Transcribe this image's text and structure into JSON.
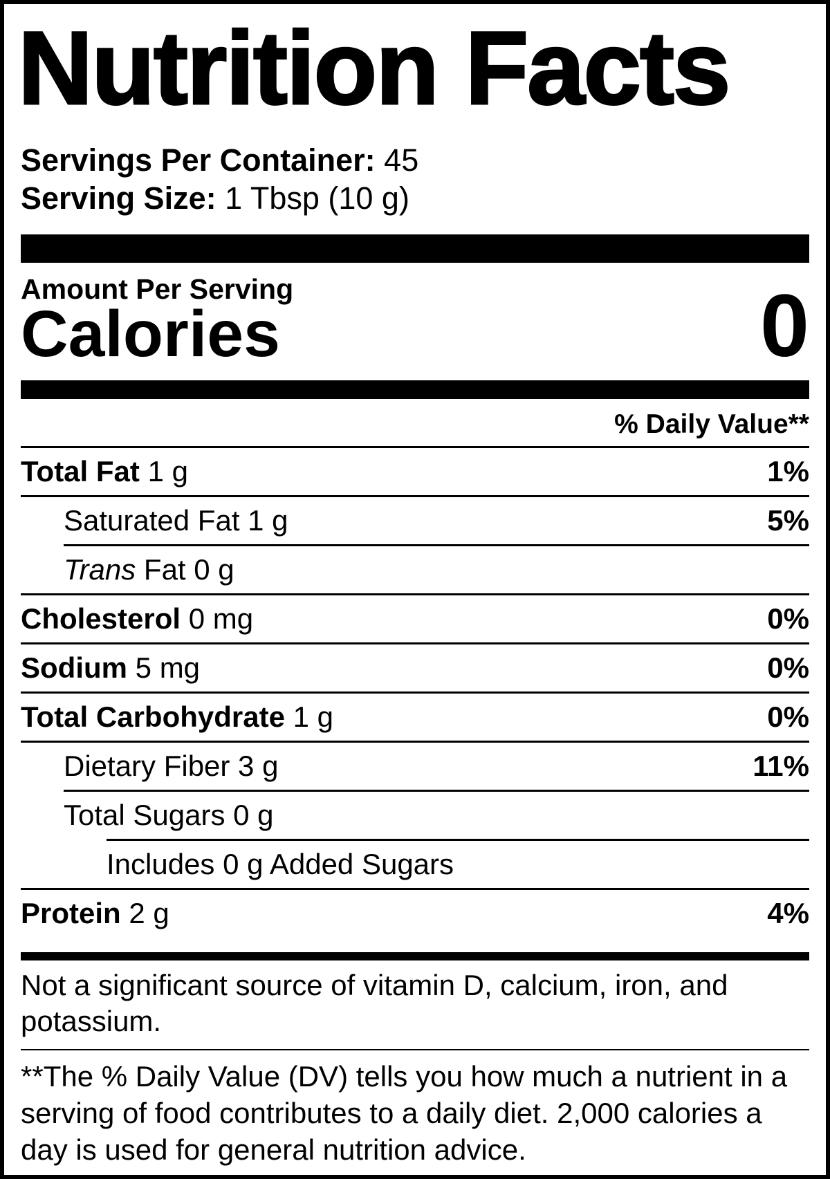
{
  "colors": {
    "ink": "#000000",
    "paper": "#ffffff"
  },
  "title": "Nutrition Facts",
  "serving_info": {
    "servings_per_container_label": "Servings Per Container:",
    "servings_per_container_value": "45",
    "serving_size_label": "Serving Size:",
    "serving_size_value": "1 Tbsp (10 g)"
  },
  "amount_per_serving_label": "Amount Per Serving",
  "calories": {
    "label": "Calories",
    "value": "0"
  },
  "daily_value_header": "% Daily Value**",
  "nutrients": [
    {
      "name_bold": "Total Fat",
      "name_italic": "",
      "name_rest": "1 g",
      "dv": "1%"
    },
    {
      "name_bold": "",
      "name_italic": "",
      "name_rest": "Saturated Fat 1 g",
      "dv": "5%"
    },
    {
      "name_bold": "",
      "name_italic": "Trans",
      "name_rest": "Fat 0 g",
      "dv": ""
    },
    {
      "name_bold": "Cholesterol",
      "name_italic": "",
      "name_rest": "0 mg",
      "dv": "0%"
    },
    {
      "name_bold": "Sodium",
      "name_italic": "",
      "name_rest": "5 mg",
      "dv": "0%"
    },
    {
      "name_bold": "Total Carbohydrate",
      "name_italic": "",
      "name_rest": "1 g",
      "dv": "0%"
    },
    {
      "name_bold": "",
      "name_italic": "",
      "name_rest": "Dietary Fiber 3 g",
      "dv": "11%"
    },
    {
      "name_bold": "",
      "name_italic": "",
      "name_rest": "Total Sugars 0 g",
      "dv": ""
    },
    {
      "name_bold": "",
      "name_italic": "",
      "name_rest": "Includes 0 g Added Sugars",
      "dv": ""
    },
    {
      "name_bold": "Protein",
      "name_italic": "",
      "name_rest": "2 g",
      "dv": "4%"
    }
  ],
  "disclaimer": "Not a significant source of vitamin D, calcium, iron, and potassium.",
  "footnote": "**The % Daily Value (DV) tells you how much a nutrient in a serving of food contributes to a daily diet. 2,000 calories a day is used for general nutrition advice."
}
